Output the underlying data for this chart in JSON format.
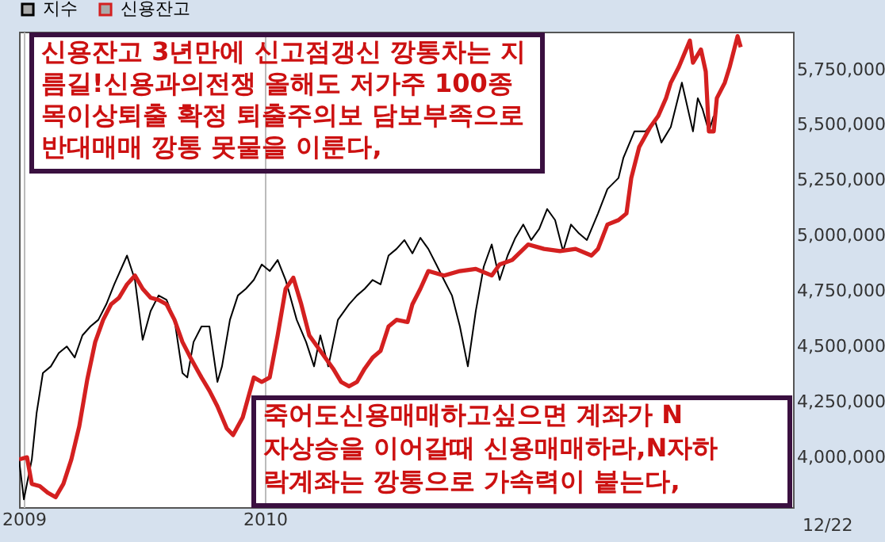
{
  "chart_data": {
    "type": "line",
    "x": [
      2008.98,
      2009.0,
      2009.033,
      2009.053,
      2009.079,
      2009.112,
      2009.145,
      2009.178,
      2009.211,
      2009.243,
      2009.276,
      2009.309,
      2009.342,
      2009.375,
      2009.428,
      2009.461,
      2009.493,
      2009.526,
      2009.559,
      2009.592,
      2009.625,
      2009.658,
      2009.678,
      2009.704,
      2009.737,
      2009.77,
      2009.803,
      2009.822,
      2009.855,
      2009.888,
      2009.921,
      2009.954,
      2009.987,
      2010.02,
      2010.053,
      2010.086,
      2010.132,
      2010.171,
      2010.204,
      2010.23,
      2010.263,
      2010.303,
      2010.349,
      2010.382,
      2010.414,
      2010.447,
      2010.48,
      2010.513,
      2010.546,
      2010.579,
      2010.612,
      2010.645,
      2010.678,
      2010.711,
      2010.743,
      2010.776,
      2010.809,
      2010.842,
      2010.875,
      2010.908,
      2010.941,
      2010.974,
      2011.007,
      2011.039,
      2011.072,
      2011.105,
      2011.138,
      2011.171,
      2011.204,
      2011.237,
      2011.27,
      2011.303,
      2011.336,
      2011.382,
      2011.421,
      2011.467,
      2011.487,
      2011.533,
      2011.579,
      2011.618,
      2011.645,
      2011.684,
      2011.73,
      2011.776,
      2011.796,
      2011.816,
      2011.842,
      2011.862
    ],
    "series": [
      {
        "name": "지수",
        "color": "#000000",
        "values": [
          3990000,
          3810000,
          3990000,
          4200000,
          4380000,
          4410000,
          4470000,
          4500000,
          4450000,
          4550000,
          4590000,
          4620000,
          4690000,
          4780000,
          4910000,
          4800000,
          4530000,
          4660000,
          4730000,
          4710000,
          4620000,
          4380000,
          4360000,
          4520000,
          4590000,
          4590000,
          4340000,
          4410000,
          4620000,
          4730000,
          4760000,
          4800000,
          4870000,
          4840000,
          4890000,
          4800000,
          4620000,
          4520000,
          4410000,
          4550000,
          4410000,
          4620000,
          4690000,
          4730000,
          4760000,
          4800000,
          4780000,
          4910000,
          4940000,
          4980000,
          4920000,
          4990000,
          4940000,
          4870000,
          4800000,
          4730000,
          4590000,
          4410000,
          4660000,
          4860000,
          4960000,
          4800000,
          4910000,
          4990000,
          5050000,
          4980000,
          5030000,
          5120000,
          5070000,
          4930000,
          5050000,
          5010000,
          4980000,
          5100000,
          5210000,
          5260000,
          5350000,
          5470000,
          5470000,
          5520000,
          5420000,
          5490000,
          5690000,
          5470000,
          5620000,
          5570000,
          5470000,
          5540000
        ]
      },
      {
        "name": "신용잔고",
        "color": "#d42020",
        "x": [
          2008.98,
          2009.013,
          2009.033,
          2009.066,
          2009.099,
          2009.132,
          2009.164,
          2009.197,
          2009.23,
          2009.263,
          2009.296,
          2009.329,
          2009.362,
          2009.395,
          2009.428,
          2009.461,
          2009.493,
          2009.526,
          2009.559,
          2009.592,
          2009.625,
          2009.658,
          2009.691,
          2009.737,
          2009.77,
          2009.803,
          2009.842,
          2009.868,
          2009.908,
          2009.954,
          2009.987,
          2010.02,
          2010.053,
          2010.086,
          2010.118,
          2010.151,
          2010.184,
          2010.217,
          2010.25,
          2010.283,
          2010.316,
          2010.349,
          2010.382,
          2010.414,
          2010.447,
          2010.48,
          2010.513,
          2010.546,
          2010.592,
          2010.612,
          2010.645,
          2010.678,
          2010.743,
          2010.809,
          2010.875,
          2010.941,
          2010.974,
          2011.026,
          2011.092,
          2011.158,
          2011.224,
          2011.289,
          2011.355,
          2011.382,
          2011.421,
          2011.467,
          2011.5,
          2011.52,
          2011.553,
          2011.599,
          2011.632,
          2011.664,
          2011.684,
          2011.717,
          2011.763,
          2011.776,
          2011.809,
          2011.829,
          2011.842,
          2011.862,
          2011.875,
          2011.908,
          2011.928,
          2011.961,
          2011.974
        ],
        "values": [
          3990000,
          4000000,
          3880000,
          3870000,
          3840000,
          3820000,
          3880000,
          3990000,
          4140000,
          4350000,
          4520000,
          4620000,
          4690000,
          4720000,
          4780000,
          4820000,
          4760000,
          4720000,
          4710000,
          4690000,
          4620000,
          4520000,
          4450000,
          4360000,
          4300000,
          4230000,
          4130000,
          4100000,
          4180000,
          4360000,
          4340000,
          4360000,
          4550000,
          4760000,
          4810000,
          4690000,
          4550000,
          4500000,
          4450000,
          4400000,
          4340000,
          4320000,
          4340000,
          4400000,
          4450000,
          4480000,
          4590000,
          4620000,
          4610000,
          4690000,
          4760000,
          4840000,
          4820000,
          4840000,
          4850000,
          4820000,
          4870000,
          4890000,
          4960000,
          4940000,
          4930000,
          4940000,
          4910000,
          4940000,
          5050000,
          5070000,
          5100000,
          5260000,
          5400000,
          5490000,
          5540000,
          5620000,
          5690000,
          5760000,
          5880000,
          5780000,
          5840000,
          5740000,
          5470000,
          5470000,
          5620000,
          5690000,
          5760000,
          5900000,
          5850000
        ]
      }
    ],
    "xlim": [
      2008.98,
      2012.191
    ],
    "xticks": [
      2009,
      2010
    ],
    "ylim": [
      3775000,
      5920000
    ],
    "yticks": [
      {
        "value": 4000000,
        "label": "4,000,000"
      },
      {
        "value": 4250000,
        "label": "4,250,000"
      },
      {
        "value": 4500000,
        "label": "4,500,000"
      },
      {
        "value": 4750000,
        "label": "4,750,000"
      },
      {
        "value": 5000000,
        "label": "5,000,000"
      },
      {
        "value": 5250000,
        "label": "5,250,000"
      },
      {
        "value": 5500000,
        "label": "5,500,000"
      },
      {
        "value": 5750000,
        "label": "5,750,000"
      }
    ],
    "grid": "x",
    "legend": "top left",
    "marker": "none",
    "line_style": "solid",
    "annotations": [
      "신용잔고 3년만에 신고점갱신 깡통차는 지\n름길!신용과의전쟁 올해도 저가주 100종\n목이상퇴출 확정 퇴출주의보 담보부족으로\n반대매매 깡통 못물을 이룬다,",
      "죽어도신용매매하고싶으면 계좌가 N\n자상승을 이어갈때 신용매매하라,N자하\n락계좌는 깡통으로 가속력이 붙는다,",
      "12/22"
    ]
  }
}
